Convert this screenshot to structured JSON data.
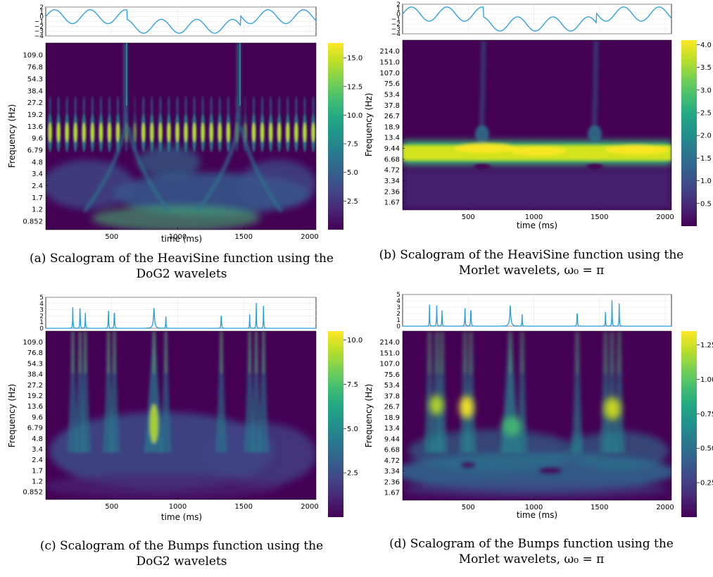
{
  "captions": {
    "a": {
      "line1": "(a) Scalogram of the HeaviSine function using the",
      "line2": "DoG2 wavelets"
    },
    "b": {
      "line1": "(b) Scalogram of the HeaviSine function using the",
      "line2": "Morlet wavelets, ω₀ = π"
    },
    "c": {
      "line1": "(c) Scalogram of the Bumps function using the",
      "line2": "DoG2 wavelets"
    },
    "d": {
      "line1": "(d) Scalogram of the Bumps function using the",
      "line2": "Morlet wavelets, ω₀ = π"
    }
  },
  "colors": {
    "signal": "#1f9fe0",
    "viridis_low": "#440154",
    "viridis_high": "#fde725"
  },
  "chart_data": [
    {
      "id": "a",
      "type": "heatmap",
      "signal": "HeaviSine",
      "wavelet": "DoG2",
      "xlabel": "time (ms)",
      "ylabel": "Frequency (Hz)",
      "xlim": [
        0,
        2048
      ],
      "x_ticks": [
        "500",
        "1000",
        "1500",
        "2000"
      ],
      "x_tick_values": [
        500,
        1000,
        1500,
        2000
      ],
      "y_ticks": [
        "109.0",
        "76.8",
        "54.3",
        "38.4",
        "27.2",
        "19.2",
        "13.6",
        "9.6",
        "6.79",
        "4.8",
        "3.4",
        "2.4",
        "1.7",
        "1.2",
        "0.852"
      ],
      "colorbar_ticks": [
        "15.0",
        "12.5",
        "10.0",
        "7.5",
        "5.0",
        "2.5"
      ],
      "colorbar_values": [
        15.0,
        12.5,
        10.0,
        7.5,
        5.0,
        2.5
      ],
      "colorbar_range": [
        0,
        16.3
      ],
      "signal_ylim": [
        -4,
        2
      ],
      "signal_ticks": [
        "2",
        "1",
        "0",
        "−1",
        "−2",
        "−3",
        "−4"
      ],
      "discontinuities_ms": [
        620,
        1470
      ]
    },
    {
      "id": "b",
      "type": "heatmap",
      "signal": "HeaviSine",
      "wavelet": "Morlet",
      "xlabel": "time (ms)",
      "ylabel": "Frequency (Hz)",
      "xlim": [
        0,
        2048
      ],
      "x_ticks": [
        "500",
        "1000",
        "1500",
        "2000"
      ],
      "x_tick_values": [
        500,
        1000,
        1500,
        2000
      ],
      "y_ticks": [
        "214.0",
        "151.0",
        "107.0",
        "75.6",
        "53.4",
        "37.8",
        "26.7",
        "18.9",
        "13.4",
        "9.44",
        "6.68",
        "4.72",
        "3.34",
        "2.36",
        "1.67"
      ],
      "colorbar_ticks": [
        "4.0",
        "3.5",
        "3.0",
        "2.5",
        "2.0",
        "1.5",
        "1.0",
        "0.5"
      ],
      "colorbar_values": [
        4.0,
        3.5,
        3.0,
        2.5,
        2.0,
        1.5,
        1.0,
        0.5
      ],
      "colorbar_range": [
        0,
        4.1
      ],
      "signal_ylim": [
        -4,
        2
      ],
      "signal_ticks": [
        "2",
        "1",
        "0",
        "−1",
        "−2",
        "−3",
        "−4"
      ],
      "discontinuities_ms": [
        620,
        1470
      ]
    },
    {
      "id": "c",
      "type": "heatmap",
      "signal": "Bumps",
      "wavelet": "DoG2",
      "xlabel": "time (ms)",
      "ylabel": "Frequency (Hz)",
      "xlim": [
        0,
        2048
      ],
      "x_ticks": [
        "500",
        "1000",
        "1500",
        "2000"
      ],
      "x_tick_values": [
        500,
        1000,
        1500,
        2000
      ],
      "y_ticks": [
        "109.0",
        "76.8",
        "54.3",
        "38.4",
        "27.2",
        "19.2",
        "13.6",
        "9.6",
        "6.79",
        "4.8",
        "3.4",
        "2.4",
        "1.7",
        "1.2",
        "0.852"
      ],
      "colorbar_ticks": [
        "10.0",
        "7.5",
        "5.0",
        "2.5"
      ],
      "colorbar_values": [
        10.0,
        7.5,
        5.0,
        2.5
      ],
      "colorbar_range": [
        0,
        10.5
      ],
      "signal_ylim": [
        0,
        5
      ],
      "signal_ticks": [
        "5",
        "4",
        "3",
        "2",
        "1",
        "0"
      ],
      "bumps_ms": [
        205,
        260,
        300,
        475,
        520,
        820,
        910,
        1330,
        1545,
        1595,
        1650
      ]
    },
    {
      "id": "d",
      "type": "heatmap",
      "signal": "Bumps",
      "wavelet": "Morlet",
      "xlabel": "time (ms)",
      "ylabel": "Frequency (Hz)",
      "xlim": [
        0,
        2048
      ],
      "x_ticks": [
        "500",
        "1000",
        "1500",
        "2000"
      ],
      "x_tick_values": [
        500,
        1000,
        1500,
        2000
      ],
      "y_ticks": [
        "214.0",
        "151.0",
        "107.0",
        "75.6",
        "53.4",
        "37.8",
        "26.7",
        "18.9",
        "13.4",
        "9.44",
        "6.68",
        "4.72",
        "3.34",
        "2.36",
        "1.67"
      ],
      "colorbar_ticks": [
        "1.25",
        "1.00",
        "0.75",
        "0.50",
        "0.25"
      ],
      "colorbar_values": [
        1.25,
        1.0,
        0.75,
        0.5,
        0.25
      ],
      "colorbar_range": [
        0,
        1.35
      ],
      "signal_ylim": [
        0,
        5
      ],
      "signal_ticks": [
        "5",
        "4",
        "3",
        "2",
        "1",
        "0"
      ],
      "bumps_ms": [
        205,
        260,
        300,
        475,
        520,
        820,
        910,
        1330,
        1545,
        1595,
        1650
      ]
    }
  ]
}
